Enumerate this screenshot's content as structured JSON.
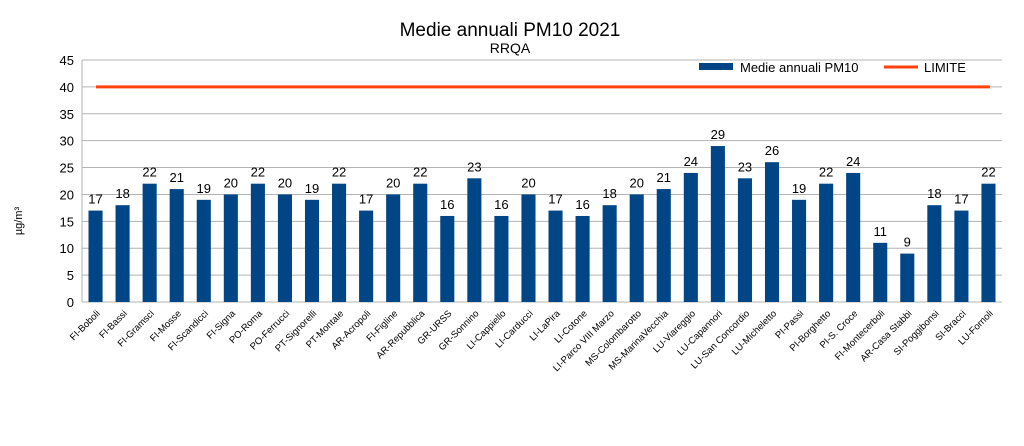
{
  "chart_data": {
    "type": "bar",
    "title": "Medie annuali PM10 2021",
    "subtitle": "RRQA",
    "xlabel": "",
    "ylabel": "µg/m³",
    "ylim": [
      0,
      45
    ],
    "yticks": [
      0,
      5,
      10,
      15,
      20,
      25,
      30,
      35,
      40,
      45
    ],
    "grid": true,
    "legend_position": "top-right",
    "categories": [
      "FI-Boboli",
      "FI-Bassi",
      "FI-Gramsci",
      "FI-Mosse",
      "FI-Scandicci",
      "FI-Signa",
      "PO-Roma",
      "PO-Ferrucci",
      "PT-Signorelli",
      "PT-Montale",
      "AR-Acropoli",
      "FI-Figline",
      "AR-Repubblica",
      "GR-URSS",
      "GR-Sonnino",
      "LI-Cappiello",
      "LI-Carducci",
      "LI-LaPira",
      "LI-Cotone",
      "LI-Parco VIII Marzo",
      "MS-Colombarotto",
      "MS-MarinaVecchia",
      "LU-Viareggio",
      "LU-Capannori",
      "LU-San Concordio",
      "LU-Micheletto",
      "PI-Passi",
      "PI-Borghetto",
      "PI-S. Croce",
      "FI-Montecerboli",
      "AR-Casa Stabbi",
      "SI-Poggibonsi",
      "SI-Bracci",
      "LU-Fornoli"
    ],
    "series": [
      {
        "name": "Medie annuali PM10",
        "type": "bar",
        "color": "#004586",
        "values": [
          17,
          18,
          22,
          21,
          19,
          20,
          22,
          20,
          19,
          22,
          17,
          20,
          22,
          16,
          23,
          16,
          20,
          17,
          16,
          18,
          20,
          21,
          24,
          29,
          23,
          26,
          19,
          22,
          24,
          11,
          9,
          18,
          17,
          22
        ]
      },
      {
        "name": "LIMITE",
        "type": "line",
        "color": "#ff420e",
        "value": 40
      }
    ]
  }
}
